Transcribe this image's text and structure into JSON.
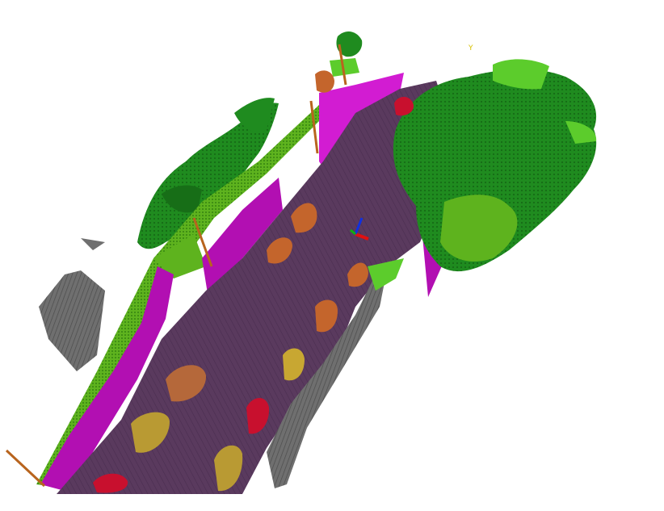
{
  "viewer": {
    "axis_label_y": "Y"
  },
  "colors": {
    "background": "#ffffff",
    "road": "#5a3a5e",
    "road_stripe": "#4a2d50",
    "sidewalk": "#b20fb2",
    "curb_light": "#d21cd2",
    "terrain": "#5eb31e",
    "terrain_dark": "#3f8f14",
    "vegetation": "#1f8b1f",
    "vegetation_dark": "#176e17",
    "vegetation_light": "#5ccc2c",
    "fence": "#6f6f6f",
    "fence_dark": "#4e4e4e",
    "pole": "#b8641e",
    "car_red": "#c8102e",
    "car_orange": "#c4652c",
    "car_brown": "#b5683a",
    "car_olive": "#c8a732",
    "car_khaki": "#b99a33",
    "axis_x": "#e01010",
    "axis_y": "#10b010",
    "axis_z": "#1030e0",
    "label_yellow": "#d8c000"
  },
  "legend_semantics": [
    "road",
    "sidewalk",
    "terrain",
    "vegetation",
    "fence",
    "pole",
    "car"
  ]
}
